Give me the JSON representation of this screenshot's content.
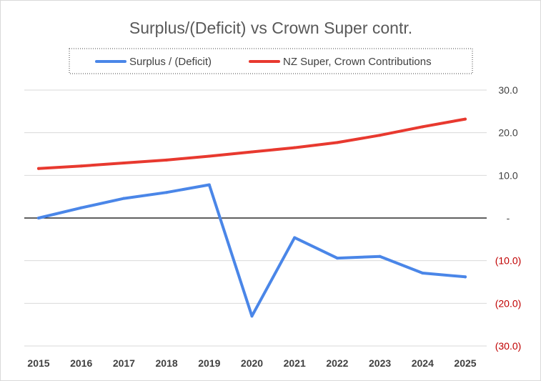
{
  "chart_data": {
    "type": "line",
    "title": "Surplus/(Deficit) vs Crown Super contr.",
    "categories": [
      "2015",
      "2016",
      "2017",
      "2018",
      "2019",
      "2020",
      "2021",
      "2022",
      "2023",
      "2024",
      "2025"
    ],
    "series": [
      {
        "name": "Surplus / (Deficit)",
        "color": "#4a86e8",
        "values": [
          0.0,
          2.4,
          4.6,
          6.0,
          7.8,
          -23.0,
          -4.6,
          -9.4,
          -9.0,
          -12.9,
          -13.8
        ]
      },
      {
        "name": "NZ Super, Crown Contributions",
        "color": "#e8392f",
        "values": [
          11.6,
          12.2,
          12.9,
          13.6,
          14.5,
          15.5,
          16.5,
          17.7,
          19.4,
          21.4,
          23.2
        ]
      }
    ],
    "ylim": [
      -30,
      30
    ],
    "yticks": [
      {
        "value": 30,
        "label": "30.0",
        "color": "#404040"
      },
      {
        "value": 20,
        "label": "20.0",
        "color": "#404040"
      },
      {
        "value": 10,
        "label": "10.0",
        "color": "#404040"
      },
      {
        "value": 0,
        "label": "-",
        "color": "#404040"
      },
      {
        "value": -10,
        "label": "(10.0)",
        "color": "#c00000"
      },
      {
        "value": -20,
        "label": "(20.0)",
        "color": "#c00000"
      },
      {
        "value": -30,
        "label": "(30.0)",
        "color": "#c00000"
      }
    ],
    "grid": true,
    "y_axis_side": "right",
    "legend_position": "top",
    "legend_border": "dotted",
    "gridline_color": "#d9d9d9",
    "zero_line_color": "#000000"
  }
}
